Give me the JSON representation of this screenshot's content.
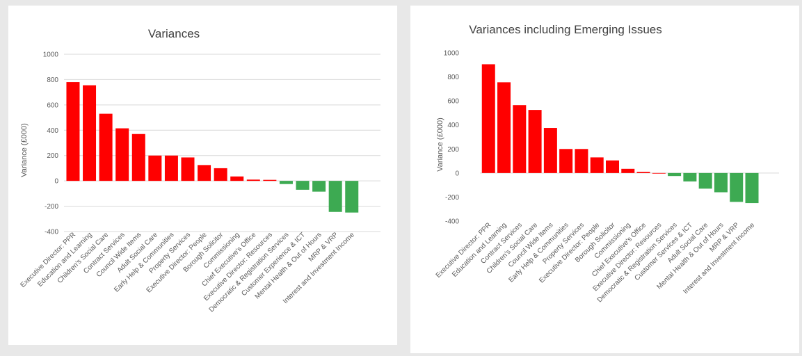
{
  "colors": {
    "positive": "#ff0000",
    "negative": "#3daa52",
    "grid": "#d9d9d9"
  },
  "chart_data": [
    {
      "type": "bar",
      "title": "Variances",
      "xlabel": "",
      "ylabel": "Variance (£000)",
      "ylim": [
        -400,
        1000
      ],
      "yticks": [
        -400,
        -200,
        0,
        200,
        400,
        600,
        800,
        1000
      ],
      "grid": true,
      "categories": [
        "Executive Director: PPR",
        "Education and Learning",
        "Children's Social Care",
        "Contract Services",
        "Council Wide Items",
        "Adult Social Care",
        "Early Help & Communities",
        "Property Services",
        "Executive Director: People",
        "Borough Solicitor",
        "Commissioning",
        "Chief Executive's Office",
        "Executive Director: Resources",
        "Democratic & Registration Services",
        "Customer Experience & ICT",
        "Mental Health & Out of Hours",
        "MRP & VRP",
        "Interest and Investment Income"
      ],
      "values": [
        780,
        755,
        530,
        415,
        370,
        200,
        200,
        185,
        125,
        100,
        35,
        10,
        8,
        -25,
        -70,
        -85,
        -245,
        -250
      ]
    },
    {
      "type": "bar",
      "title": "Variances including Emerging Issues",
      "xlabel": "",
      "ylabel": "Variance (£000)",
      "ylim": [
        -400,
        1000
      ],
      "yticks": [
        -400,
        -200,
        0,
        200,
        400,
        600,
        800,
        1000
      ],
      "grid": false,
      "categories": [
        "Executive Director: PPR",
        "Education and Learning",
        "Contract Services",
        "Children's Social Care",
        "Council Wide Items",
        "Early Help & Communities",
        "Property Services",
        "Executive Director: People",
        "Borough Solicitor",
        "Commissioning",
        "Chief Executive's Office",
        "Executive Director: Resources",
        "Democratic & Registration Services",
        "Customer Services & ICT",
        "Adult Social Care",
        "Mental Health & Out of Hours",
        "MRP & VRP",
        "Interest and Investment Income"
      ],
      "values": [
        905,
        755,
        565,
        525,
        375,
        200,
        200,
        130,
        105,
        35,
        10,
        0,
        -25,
        -70,
        -130,
        -160,
        -240,
        -250
      ]
    }
  ]
}
